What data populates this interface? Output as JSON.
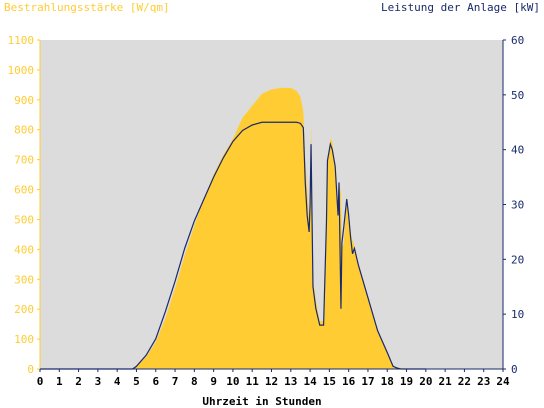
{
  "chart_data": {
    "type": "area",
    "title_left": "Bestrahlungsstärke [W/qm]",
    "title_right": "Leistung der Anlage [kW]",
    "xlabel": "Uhrzeit in Stunden",
    "x_ticks": [
      "0",
      "1",
      "2",
      "3",
      "4",
      "5",
      "6",
      "7",
      "8",
      "9",
      "10",
      "11",
      "12",
      "13",
      "14",
      "15",
      "16",
      "17",
      "18",
      "19",
      "20",
      "21",
      "22",
      "23",
      "24"
    ],
    "y_left_ticks": [
      "0",
      "100",
      "200",
      "300",
      "400",
      "500",
      "600",
      "700",
      "800",
      "900",
      "1000",
      "1100"
    ],
    "y_right_ticks": [
      "0",
      "10",
      "20",
      "30",
      "40",
      "50",
      "60"
    ],
    "xlim": [
      0,
      24
    ],
    "ylim_left": [
      0,
      1100
    ],
    "ylim_right": [
      0,
      60
    ],
    "colors": {
      "plot_background": "#dcdcdc",
      "irradiance_fill": "#ffcc33",
      "power_line": "#1a2a6c",
      "left_axis_text": "#ffcc33",
      "right_axis_text": "#1a2a6c"
    },
    "series": [
      {
        "axis": "left",
        "type": "area",
        "x": [
          0,
          4.8,
          5.0,
          5.5,
          6.0,
          6.5,
          7.0,
          7.5,
          8.0,
          8.5,
          9.0,
          9.5,
          10.0,
          10.5,
          11.0,
          11.5,
          12.0,
          12.5,
          13.0,
          13.3,
          13.5,
          13.65,
          13.75,
          13.85,
          13.95,
          14.0,
          14.05,
          14.15,
          14.3,
          14.5,
          14.7,
          14.85,
          14.9,
          15.05,
          15.15,
          15.3,
          15.45,
          15.5,
          15.6,
          15.65,
          15.75,
          15.9,
          16.0,
          16.1,
          16.2,
          16.3,
          16.5,
          17.0,
          17.5,
          18.0,
          18.3,
          18.5,
          18.7,
          19.0,
          19.5,
          20.0
        ],
        "values": [
          0,
          0,
          10,
          40,
          90,
          170,
          270,
          380,
          480,
          570,
          650,
          715,
          770,
          840,
          880,
          920,
          935,
          940,
          940,
          930,
          910,
          860,
          700,
          600,
          500,
          560,
          830,
          300,
          230,
          160,
          160,
          500,
          700,
          770,
          760,
          680,
          500,
          620,
          590,
          400,
          420,
          580,
          520,
          460,
          430,
          410,
          350,
          240,
          130,
          60,
          10,
          5,
          3,
          2,
          1,
          0
        ]
      },
      {
        "axis": "right",
        "type": "line",
        "x": [
          0,
          4.8,
          5.0,
          5.5,
          6.0,
          6.5,
          7.0,
          7.5,
          8.0,
          8.5,
          9.0,
          9.5,
          10.0,
          10.5,
          11.0,
          11.5,
          12.0,
          12.5,
          13.0,
          13.3,
          13.5,
          13.65,
          13.75,
          13.85,
          13.95,
          14.0,
          14.05,
          14.15,
          14.3,
          14.5,
          14.7,
          14.85,
          14.9,
          15.05,
          15.15,
          15.3,
          15.45,
          15.5,
          15.6,
          15.65,
          15.75,
          15.9,
          16.0,
          16.1,
          16.2,
          16.3,
          16.5,
          17.0,
          17.5,
          18.0,
          18.3,
          18.5,
          18.7,
          19.0,
          19.5,
          20.0
        ],
        "values": [
          0,
          0,
          0.5,
          2.5,
          5.5,
          10.5,
          16,
          22,
          27,
          31,
          35,
          38.5,
          41.5,
          43.5,
          44.5,
          45,
          45,
          45,
          45,
          45,
          44.8,
          44,
          34,
          28,
          25,
          30,
          41,
          15,
          11,
          8,
          8,
          27,
          38,
          41,
          40,
          37,
          28,
          34,
          11,
          23,
          26,
          31,
          28,
          24,
          21,
          22,
          19,
          13,
          7,
          3,
          0.5,
          0.2,
          0,
          0,
          0,
          0
        ]
      }
    ],
    "grid": false,
    "legend": "none"
  }
}
